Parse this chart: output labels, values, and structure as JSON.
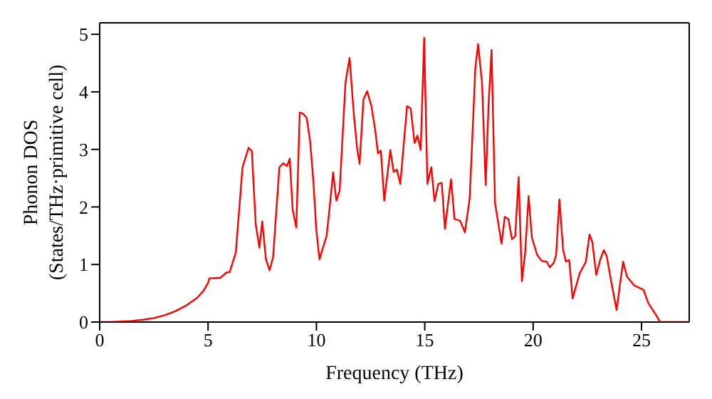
{
  "chart_data": {
    "type": "line",
    "xlabel": "Frequency (THz)",
    "ylabel": "Phonon DOS\n(States/THz·primitive cell)",
    "x": [
      0,
      0.5,
      1,
      1.5,
      2,
      2.5,
      3,
      3.5,
      4,
      4.5,
      4.8,
      5.0,
      5.06,
      5.56,
      5.85,
      6.0,
      6.28,
      6.59,
      6.87,
      7.02,
      7.2,
      7.37,
      7.5,
      7.67,
      7.84,
      8.0,
      8.29,
      8.47,
      8.64,
      8.77,
      8.9,
      9.07,
      9.23,
      9.38,
      9.55,
      9.71,
      9.86,
      9.99,
      10.14,
      10.47,
      10.62,
      10.77,
      10.92,
      11.07,
      11.34,
      11.53,
      11.73,
      11.88,
      11.99,
      12.17,
      12.34,
      12.54,
      12.71,
      12.84,
      12.97,
      13.13,
      13.26,
      13.41,
      13.56,
      13.71,
      13.87,
      14.18,
      14.35,
      14.53,
      14.66,
      14.81,
      14.97,
      15.12,
      15.3,
      15.45,
      15.62,
      15.78,
      15.93,
      16.06,
      16.21,
      16.37,
      16.63,
      16.85,
      17.07,
      17.2,
      17.33,
      17.46,
      17.64,
      17.81,
      17.94,
      18.08,
      18.24,
      18.54,
      18.69,
      18.86,
      19.02,
      19.17,
      19.33,
      19.48,
      19.63,
      19.79,
      19.94,
      20.18,
      20.4,
      20.62,
      20.77,
      20.95,
      21.06,
      21.21,
      21.38,
      21.51,
      21.66,
      21.82,
      22.14,
      22.43,
      22.6,
      22.73,
      22.91,
      23.1,
      23.26,
      23.39,
      23.56,
      23.69,
      23.85,
      24.0,
      24.15,
      24.33,
      24.65,
      25.09,
      25.31,
      25.64,
      25.86,
      27.2
    ],
    "series": [
      {
        "color": "#ff0000",
        "values": [
          0,
          0.0,
          0.01,
          0.02,
          0.04,
          0.07,
          0.12,
          0.19,
          0.29,
          0.42,
          0.55,
          0.68,
          0.76,
          0.77,
          0.86,
          0.87,
          1.21,
          2.69,
          3.03,
          2.97,
          1.7,
          1.29,
          1.75,
          1.09,
          0.9,
          1.13,
          2.69,
          2.76,
          2.71,
          2.84,
          1.96,
          1.64,
          3.64,
          3.62,
          3.55,
          3.14,
          2.44,
          1.62,
          1.09,
          1.5,
          2.03,
          2.6,
          2.11,
          2.28,
          4.16,
          4.59,
          3.59,
          3.01,
          2.75,
          3.87,
          4.01,
          3.75,
          3.34,
          2.93,
          2.98,
          2.11,
          2.52,
          2.99,
          2.61,
          2.65,
          2.4,
          3.75,
          3.71,
          3.11,
          3.24,
          2.99,
          4.94,
          2.4,
          2.69,
          2.1,
          2.4,
          2.42,
          1.62,
          2.03,
          2.48,
          1.79,
          1.76,
          1.56,
          2.15,
          3.26,
          4.41,
          4.83,
          4.16,
          2.38,
          3.77,
          4.73,
          2.07,
          1.36,
          1.83,
          1.79,
          1.44,
          1.49,
          2.52,
          0.71,
          1.21,
          2.19,
          1.47,
          1.17,
          1.06,
          1.05,
          0.95,
          1.03,
          1.17,
          2.13,
          1.26,
          1.05,
          1.08,
          0.41,
          0.84,
          1.05,
          1.52,
          1.39,
          0.82,
          1.09,
          1.25,
          1.15,
          0.79,
          0.52,
          0.21,
          0.64,
          1.05,
          0.79,
          0.64,
          0.56,
          0.33,
          0.14,
          0,
          0
        ]
      }
    ],
    "xlim": [
      0,
      27.2
    ],
    "xticks": [
      0,
      5,
      10,
      15,
      20,
      25
    ],
    "ylim": [
      0,
      5.2
    ],
    "yticks": [
      0,
      1,
      2,
      3,
      4,
      5
    ],
    "marker": "none",
    "line_style": "solid"
  }
}
